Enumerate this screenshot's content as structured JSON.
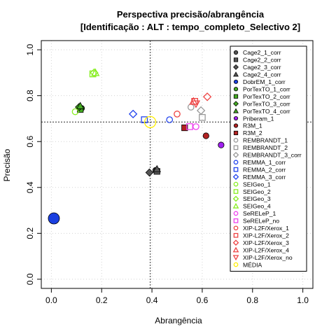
{
  "chart_data": {
    "type": "scatter",
    "title": "Perspectiva precisão/abrangência",
    "subtitle": "[Identificação : ALT : tempo_completo_Selectivo 2]",
    "xlabel": "Abrangência",
    "ylabel": "Precisão",
    "xlim": [
      0,
      1
    ],
    "ylim": [
      0,
      1
    ],
    "xticks": [
      "0.0",
      "0.2",
      "0.4",
      "0.6",
      "0.8",
      "1.0"
    ],
    "yticks": [
      "0.0",
      "0.2",
      "0.4",
      "0.6",
      "0.8",
      "1.0"
    ],
    "grid": true,
    "legend_position": "right",
    "reference_lines": {
      "x": 0.393,
      "y": 0.685
    },
    "series": [
      {
        "name": "Cage2_1_corr",
        "color": "#555555",
        "marker": "circle-filled",
        "points": [
          [
            0.415,
            0.475
          ]
        ]
      },
      {
        "name": "Cage2_2_corr",
        "color": "#555555",
        "marker": "square-filled",
        "points": [
          [
            0.42,
            0.47
          ]
        ]
      },
      {
        "name": "Cage2_3_corr",
        "color": "#555555",
        "marker": "diamond-filled",
        "points": [
          [
            0.39,
            0.465
          ]
        ]
      },
      {
        "name": "Cage2_4_corr",
        "color": "#555555",
        "marker": "triangle-filled",
        "points": [
          [
            0.42,
            0.48
          ]
        ]
      },
      {
        "name": "DobrEM_1_corr",
        "color": "#1a3fe0",
        "marker": "circle-filled",
        "points": [
          [
            0.01,
            0.265
          ]
        ]
      },
      {
        "name": "PorTexTO_1_corr",
        "color": "#44aa22",
        "marker": "circle-filled",
        "points": [
          [
            0.12,
            0.745
          ]
        ]
      },
      {
        "name": "PorTexTO_2_corr",
        "color": "#44aa22",
        "marker": "square-filled",
        "points": [
          [
            0.115,
            0.74
          ]
        ]
      },
      {
        "name": "PorTexTO_3_corr",
        "color": "#44aa22",
        "marker": "diamond-filled",
        "points": [
          [
            0.11,
            0.75
          ]
        ]
      },
      {
        "name": "PorTexTO_4_corr",
        "color": "#44aa22",
        "marker": "triangle-filled",
        "points": [
          [
            0.115,
            0.755
          ]
        ]
      },
      {
        "name": "Priberam_1",
        "color": "#a020f0",
        "marker": "circle-filled",
        "points": [
          [
            0.675,
            0.585
          ]
        ]
      },
      {
        "name": "R3M_1",
        "color": "#b22222",
        "marker": "circle-filled",
        "points": [
          [
            0.615,
            0.625
          ]
        ]
      },
      {
        "name": "R3M_2",
        "color": "#b22222",
        "marker": "square-filled",
        "points": [
          [
            0.53,
            0.66
          ]
        ]
      },
      {
        "name": "REMBRANDT_1",
        "color": "#999999",
        "marker": "circle-open",
        "points": [
          [
            0.555,
            0.75
          ]
        ]
      },
      {
        "name": "REMBRANDT_2",
        "color": "#999999",
        "marker": "square-open",
        "points": [
          [
            0.6,
            0.705
          ]
        ]
      },
      {
        "name": "REMBRANDT_3_corr",
        "color": "#999999",
        "marker": "diamond-open",
        "points": [
          [
            0.595,
            0.735
          ]
        ]
      },
      {
        "name": "REMMA_1_corr",
        "color": "#2244ee",
        "marker": "circle-open",
        "points": [
          [
            0.47,
            0.695
          ]
        ]
      },
      {
        "name": "REMMA_2_corr",
        "color": "#2244ee",
        "marker": "square-open",
        "points": [
          [
            0.37,
            0.695
          ]
        ]
      },
      {
        "name": "REMMA_3_corr",
        "color": "#2244ee",
        "marker": "diamond-open",
        "points": [
          [
            0.325,
            0.72
          ]
        ]
      },
      {
        "name": "SEIGeo_1",
        "color": "#88ee22",
        "marker": "circle-open",
        "points": [
          [
            0.095,
            0.73
          ]
        ]
      },
      {
        "name": "SEIGeo_2",
        "color": "#88ee22",
        "marker": "square-open",
        "points": [
          [
            0.165,
            0.895
          ]
        ]
      },
      {
        "name": "SEIGeo_3",
        "color": "#88ee22",
        "marker": "diamond-open",
        "points": [
          [
            0.17,
            0.9
          ]
        ]
      },
      {
        "name": "SEIGeo_4",
        "color": "#88ee22",
        "marker": "triangle-open",
        "points": [
          [
            0.175,
            0.9
          ]
        ]
      },
      {
        "name": "SeRELeP_1",
        "color": "#ee44ee",
        "marker": "circle-open",
        "points": [
          [
            0.575,
            0.665
          ]
        ]
      },
      {
        "name": "SeRELeP_no",
        "color": "#ee44ee",
        "marker": "square-open",
        "points": [
          [
            0.55,
            0.665
          ]
        ]
      },
      {
        "name": "XIP-L2F/Xerox_1",
        "color": "#ee4444",
        "marker": "circle-open",
        "points": [
          [
            0.5,
            0.72
          ]
        ]
      },
      {
        "name": "XIP-L2F/Xerox_2",
        "color": "#ee4444",
        "marker": "square-open",
        "points": [
          [
            0.57,
            0.775
          ]
        ]
      },
      {
        "name": "XIP-L2F/Xerox_3",
        "color": "#ee4444",
        "marker": "diamond-open",
        "points": [
          [
            0.62,
            0.795
          ]
        ]
      },
      {
        "name": "XIP-L2F/Xerox_4",
        "color": "#ee4444",
        "marker": "triangle-open",
        "points": [
          [
            0.565,
            0.775
          ]
        ]
      },
      {
        "name": "XIP-L2F/Xerox_no",
        "color": "#ee4444",
        "marker": "triangle-down-open",
        "points": [
          [
            0.575,
            0.765
          ]
        ]
      },
      {
        "name": "MÉDIA",
        "color": "#ffee00",
        "marker": "circle-open",
        "points": [
          [
            0.393,
            0.685
          ]
        ]
      }
    ]
  }
}
